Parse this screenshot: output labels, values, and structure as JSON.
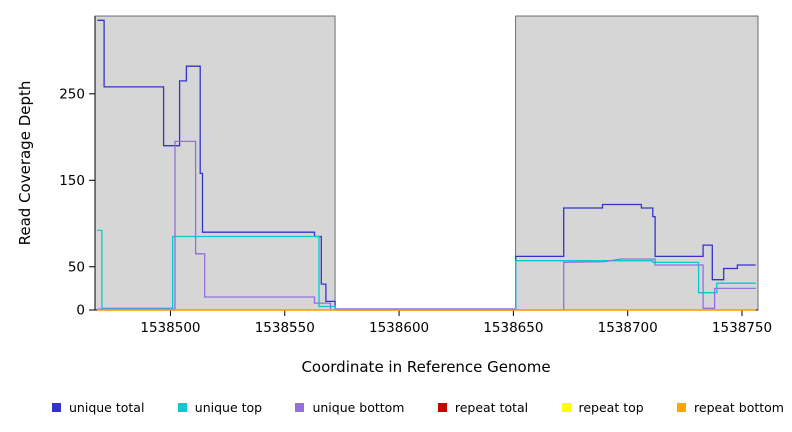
{
  "chart_data": {
    "type": "line",
    "title": "",
    "xlabel": "Coordinate in Reference Genome",
    "ylabel": "Read Coverage Depth",
    "xlim": [
      1538467,
      1538757
    ],
    "ylim": [
      0,
      340
    ],
    "grid": false,
    "legend_position": "bottom",
    "background_shading_color": "#d6d6d6",
    "shaded_regions": [
      {
        "x0": 1538467,
        "x1": 1538572
      },
      {
        "x0": 1538651,
        "x1": 1538757
      }
    ],
    "xticks": [
      {
        "value": 1538500,
        "label": "1538500"
      },
      {
        "value": 1538550,
        "label": "1538550"
      },
      {
        "value": 1538600,
        "label": "1538600"
      },
      {
        "value": 1538650,
        "label": "1538650"
      },
      {
        "value": 1538700,
        "label": "1538700"
      },
      {
        "value": 1538750,
        "label": "1538750"
      }
    ],
    "yticks": [
      {
        "value": 0,
        "label": "0"
      },
      {
        "value": 50,
        "label": "50"
      },
      {
        "value": 150,
        "label": "150"
      },
      {
        "value": 250,
        "label": "250"
      }
    ],
    "series": [
      {
        "name": "unique total",
        "color": "#3333cc",
        "points": [
          [
            1538468,
            335
          ],
          [
            1538471,
            335
          ],
          [
            1538471,
            258
          ],
          [
            1538497,
            258
          ],
          [
            1538497,
            190
          ],
          [
            1538504,
            190
          ],
          [
            1538504,
            265
          ],
          [
            1538507,
            265
          ],
          [
            1538507,
            282
          ],
          [
            1538513,
            282
          ],
          [
            1538513,
            158
          ],
          [
            1538514,
            158
          ],
          [
            1538514,
            90
          ],
          [
            1538563,
            90
          ],
          [
            1538563,
            85
          ],
          [
            1538566,
            85
          ],
          [
            1538566,
            30
          ],
          [
            1538568,
            30
          ],
          [
            1538568,
            10
          ],
          [
            1538572,
            10
          ],
          [
            1538572,
            1
          ],
          [
            1538651,
            1
          ],
          [
            1538651,
            62
          ],
          [
            1538672,
            62
          ],
          [
            1538672,
            118
          ],
          [
            1538689,
            118
          ],
          [
            1538689,
            122
          ],
          [
            1538706,
            122
          ],
          [
            1538706,
            118
          ],
          [
            1538711,
            118
          ],
          [
            1538711,
            108
          ],
          [
            1538712,
            108
          ],
          [
            1538712,
            62
          ],
          [
            1538733,
            62
          ],
          [
            1538733,
            75
          ],
          [
            1538737,
            75
          ],
          [
            1538737,
            35
          ],
          [
            1538742,
            35
          ],
          [
            1538742,
            48
          ],
          [
            1538748,
            48
          ],
          [
            1538748,
            52
          ],
          [
            1538756,
            52
          ]
        ]
      },
      {
        "name": "unique top",
        "color": "#00cdcd",
        "points": [
          [
            1538468,
            92
          ],
          [
            1538470,
            92
          ],
          [
            1538470,
            2
          ],
          [
            1538501,
            2
          ],
          [
            1538501,
            85
          ],
          [
            1538565,
            85
          ],
          [
            1538565,
            4
          ],
          [
            1538572,
            4
          ],
          [
            1538572,
            0
          ],
          [
            1538651,
            0
          ],
          [
            1538651,
            57
          ],
          [
            1538711,
            57
          ],
          [
            1538711,
            55
          ],
          [
            1538731,
            55
          ],
          [
            1538731,
            20
          ],
          [
            1538739,
            20
          ],
          [
            1538739,
            31
          ],
          [
            1538756,
            31
          ]
        ]
      },
      {
        "name": "unique bottom",
        "color": "#9370db",
        "points": [
          [
            1538468,
            1
          ],
          [
            1538502,
            1
          ],
          [
            1538502,
            195
          ],
          [
            1538511,
            195
          ],
          [
            1538511,
            65
          ],
          [
            1538515,
            65
          ],
          [
            1538515,
            15
          ],
          [
            1538563,
            15
          ],
          [
            1538563,
            8
          ],
          [
            1538570,
            8
          ],
          [
            1538570,
            0
          ],
          [
            1538672,
            0
          ],
          [
            1538672,
            55
          ],
          [
            1538690,
            56
          ],
          [
            1538697,
            59
          ],
          [
            1538712,
            59
          ],
          [
            1538712,
            52
          ],
          [
            1538733,
            52
          ],
          [
            1538733,
            2
          ],
          [
            1538738,
            2
          ],
          [
            1538738,
            25
          ],
          [
            1538756,
            25
          ]
        ]
      },
      {
        "name": "repeat total",
        "color": "#cc0000",
        "points": [
          [
            1538468,
            0
          ],
          [
            1538756,
            0
          ]
        ]
      },
      {
        "name": "repeat top",
        "color": "#ffff00",
        "points": [
          [
            1538468,
            0
          ],
          [
            1538756,
            0
          ]
        ]
      },
      {
        "name": "repeat bottom",
        "color": "#ffa500",
        "points": [
          [
            1538468,
            0
          ],
          [
            1538756,
            0
          ]
        ]
      }
    ]
  }
}
